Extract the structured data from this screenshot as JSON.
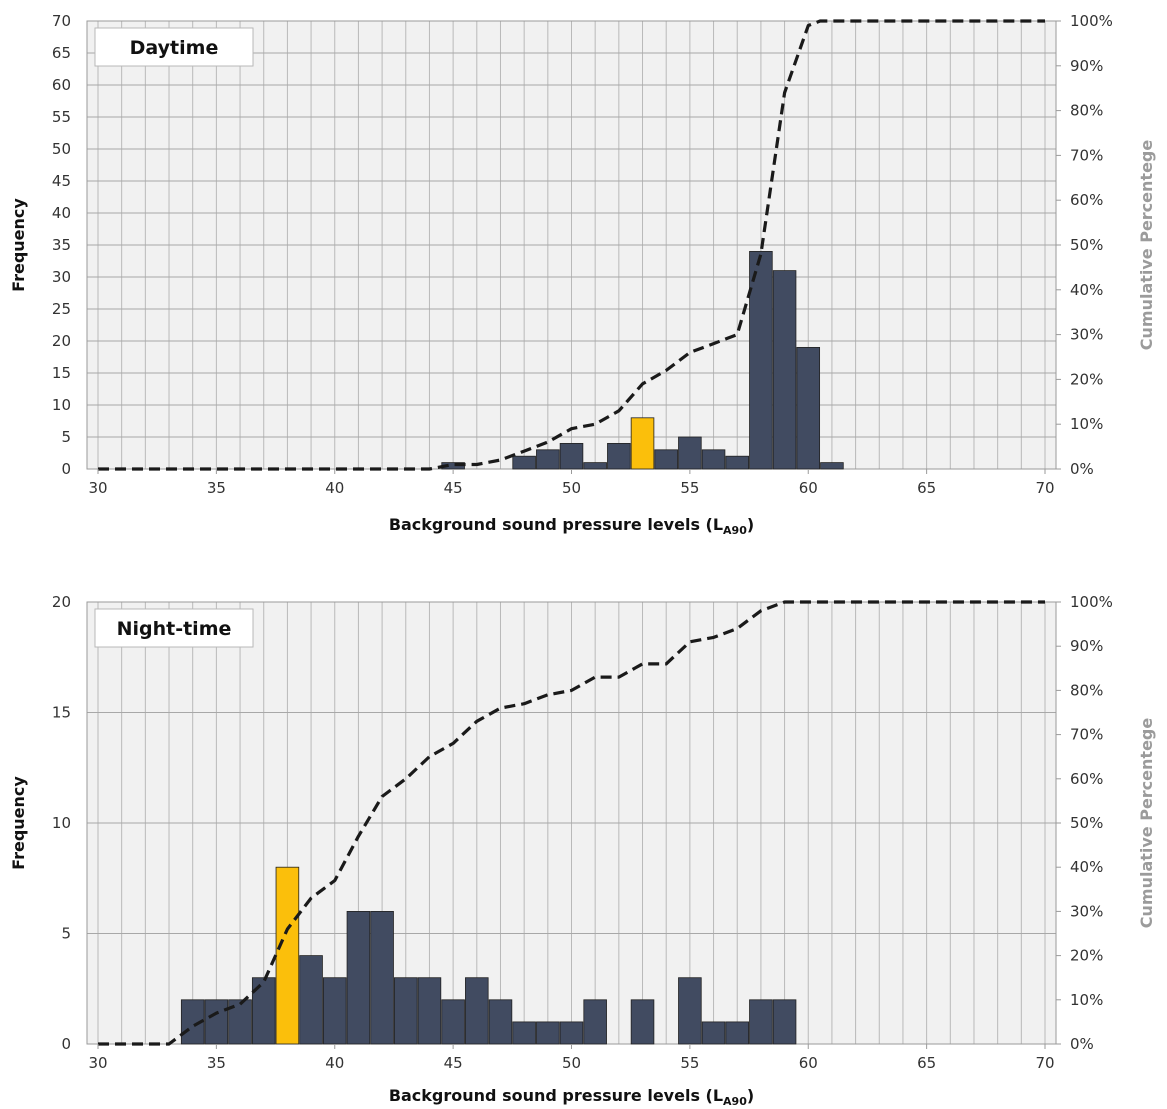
{
  "chart_data": [
    {
      "type": "bar",
      "title": "Daytime",
      "xlabel": "Background sound pressure levels (L",
      "xlabel_sub": "A90",
      "xlabel_end": ")",
      "ylabel": "Frequency",
      "y2label": "Cumulative Percentege",
      "xlim": [
        30,
        70
      ],
      "ylim": [
        0,
        70
      ],
      "x_ticks": [
        "30",
        "35",
        "40",
        "45",
        "50",
        "55",
        "60",
        "65",
        "70"
      ],
      "y_ticks": [
        "0",
        "5",
        "10",
        "15",
        "20",
        "25",
        "30",
        "35",
        "40",
        "45",
        "50",
        "55",
        "60",
        "65",
        "70"
      ],
      "y2_ticks": [
        "0%",
        "10%",
        "20%",
        "30%",
        "40%",
        "50%",
        "60%",
        "70%",
        "80%",
        "90%",
        "100%"
      ],
      "grid": true,
      "bar_color": "#414b61",
      "highlight_color": "#fbbf0b",
      "bars": [
        {
          "x": 45,
          "value": 1
        },
        {
          "x": 48,
          "value": 2
        },
        {
          "x": 49,
          "value": 3
        },
        {
          "x": 50,
          "value": 4
        },
        {
          "x": 51,
          "value": 1
        },
        {
          "x": 52,
          "value": 4
        },
        {
          "x": 53,
          "value": 8,
          "highlight": true
        },
        {
          "x": 54,
          "value": 3
        },
        {
          "x": 55,
          "value": 5
        },
        {
          "x": 56,
          "value": 3
        },
        {
          "x": 57,
          "value": 2
        },
        {
          "x": 58,
          "value": 34
        },
        {
          "x": 59,
          "value": 31
        },
        {
          "x": 60,
          "value": 19
        },
        {
          "x": 61,
          "value": 1
        }
      ],
      "cumulative": {
        "name": "Cumulative percentage",
        "x": [
          30,
          44,
          45,
          46,
          47,
          48,
          49,
          50,
          51,
          52,
          53,
          54,
          55,
          56,
          57,
          58,
          59,
          60,
          60.5,
          70
        ],
        "y": [
          0,
          0,
          1,
          1,
          2,
          4,
          6,
          9,
          10,
          13,
          19,
          22,
          26,
          28,
          30,
          48,
          84,
          99,
          100,
          100
        ]
      }
    },
    {
      "type": "bar",
      "title": "Night-time",
      "xlabel": "Background sound pressure levels (L",
      "xlabel_sub": "A90",
      "xlabel_end": ")",
      "ylabel": "Frequency",
      "y2label": "Cumulative Percentege",
      "xlim": [
        30,
        70
      ],
      "ylim": [
        0,
        20
      ],
      "x_ticks": [
        "30",
        "35",
        "40",
        "45",
        "50",
        "55",
        "60",
        "65",
        "70"
      ],
      "y_ticks": [
        "0",
        "5",
        "10",
        "15",
        "20"
      ],
      "y2_ticks": [
        "0%",
        "10%",
        "20%",
        "30%",
        "40%",
        "50%",
        "60%",
        "70%",
        "80%",
        "90%",
        "100%"
      ],
      "grid": true,
      "bar_color": "#414b61",
      "highlight_color": "#fbbf0b",
      "bars": [
        {
          "x": 34,
          "value": 2
        },
        {
          "x": 35,
          "value": 2
        },
        {
          "x": 36,
          "value": 2
        },
        {
          "x": 37,
          "value": 3
        },
        {
          "x": 38,
          "value": 8,
          "highlight": true
        },
        {
          "x": 39,
          "value": 4
        },
        {
          "x": 40,
          "value": 3
        },
        {
          "x": 41,
          "value": 6
        },
        {
          "x": 42,
          "value": 6
        },
        {
          "x": 43,
          "value": 3
        },
        {
          "x": 44,
          "value": 3
        },
        {
          "x": 45,
          "value": 2
        },
        {
          "x": 46,
          "value": 3
        },
        {
          "x": 47,
          "value": 2
        },
        {
          "x": 48,
          "value": 1
        },
        {
          "x": 49,
          "value": 1
        },
        {
          "x": 50,
          "value": 1
        },
        {
          "x": 51,
          "value": 2
        },
        {
          "x": 53,
          "value": 2
        },
        {
          "x": 55,
          "value": 3
        },
        {
          "x": 56,
          "value": 1
        },
        {
          "x": 57,
          "value": 1
        },
        {
          "x": 58,
          "value": 2
        },
        {
          "x": 59,
          "value": 2
        }
      ],
      "cumulative": {
        "name": "Cumulative percentage",
        "x": [
          30,
          33,
          34,
          35,
          36,
          37,
          38,
          39,
          40,
          41,
          42,
          43,
          44,
          45,
          46,
          47,
          48,
          49,
          50,
          51,
          52,
          53,
          54,
          55,
          56,
          57,
          58,
          59,
          70
        ],
        "y": [
          0,
          0,
          4,
          7,
          9,
          14,
          26,
          33,
          37,
          47,
          56,
          60,
          65,
          68,
          73,
          76,
          77,
          79,
          80,
          83,
          83,
          86,
          86,
          91,
          92,
          94,
          98,
          100,
          100
        ]
      }
    }
  ]
}
